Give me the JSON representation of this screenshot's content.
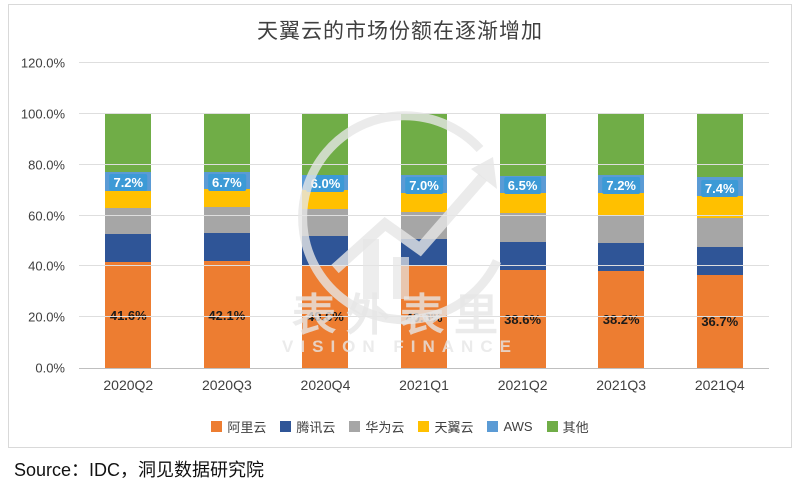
{
  "title": "天翼云的市场份额在逐渐增加",
  "source_line": "Source：IDC，洞见数据研究院",
  "watermark": {
    "cn": "表外表里",
    "en": "VISION FINANCE"
  },
  "chart_data": {
    "type": "bar",
    "subtype": "stacked-100-percent",
    "title": "天翼云的市场份额在逐渐增加",
    "categories": [
      "2020Q2",
      "2020Q3",
      "2020Q4",
      "2021Q1",
      "2021Q2",
      "2021Q3",
      "2021Q4"
    ],
    "series": [
      {
        "name": "阿里云",
        "color": "#ED7D31",
        "values": [
          41.6,
          42.1,
          40.6,
          40.0,
          38.6,
          38.2,
          36.7
        ]
      },
      {
        "name": "腾讯云",
        "color": "#2F5597",
        "values": [
          11.2,
          11.0,
          11.4,
          10.9,
          11.1,
          10.8,
          10.8
        ]
      },
      {
        "name": "华为云",
        "color": "#A6A6A6",
        "values": [
          10.0,
          10.2,
          10.5,
          10.6,
          11.3,
          11.3,
          11.6
        ]
      },
      {
        "name": "天翼云",
        "color": "#FFC000",
        "values": [
          7.0,
          7.0,
          7.5,
          7.5,
          8.0,
          8.5,
          8.5
        ]
      },
      {
        "name": "AWS",
        "color": "#5B9BD5",
        "values": [
          7.2,
          6.7,
          6.0,
          7.0,
          6.5,
          7.2,
          7.4
        ]
      },
      {
        "name": "其他",
        "color": "#70AD47",
        "values": [
          23.0,
          23.0,
          24.0,
          24.0,
          24.5,
          24.0,
          25.0
        ]
      }
    ],
    "data_labels": {
      "bottom_series_labels": [
        "41.6%",
        "42.1%",
        "40.6%",
        "40.0%",
        "38.6%",
        "38.2%",
        "36.7%"
      ],
      "highlight_labels": [
        "7.2%",
        "6.7%",
        "6.0%",
        "7.0%",
        "6.5%",
        "7.2%",
        "7.4%"
      ]
    },
    "ylim": [
      0,
      120
    ],
    "ytick_step": 20,
    "ytick_labels": [
      "0.0%",
      "20.0%",
      "40.0%",
      "60.0%",
      "80.0%",
      "100.0%",
      "120.0%"
    ],
    "grid": true,
    "legend_position": "bottom"
  }
}
